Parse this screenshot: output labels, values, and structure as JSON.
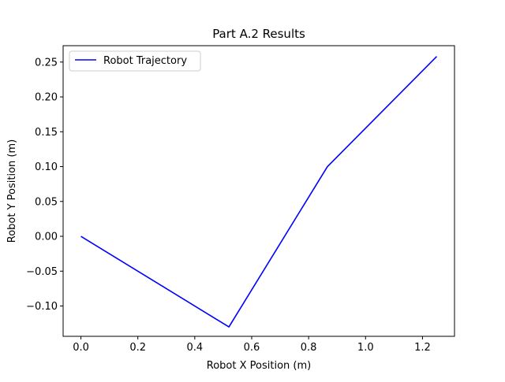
{
  "chart_data": {
    "type": "line",
    "title": "Part A.2 Results",
    "xlabel": "Robot X Position (m)",
    "ylabel": "Robot Y Position (m)",
    "xlim": [
      -0.0625,
      1.3125
    ],
    "ylim": [
      -0.1435,
      0.2735
    ],
    "xticks": [
      0.0,
      0.2,
      0.4,
      0.6,
      0.8,
      1.0,
      1.2
    ],
    "xtick_labels": [
      "0.0",
      "0.2",
      "0.4",
      "0.6",
      "0.8",
      "1.0",
      "1.2"
    ],
    "yticks": [
      -0.1,
      -0.05,
      0.0,
      0.05,
      0.1,
      0.15,
      0.2,
      0.25
    ],
    "ytick_labels": [
      "−0.10",
      "−0.05",
      "0.00",
      "0.05",
      "0.10",
      "0.15",
      "0.20",
      "0.25"
    ],
    "grid": false,
    "legend_position": "upper-left",
    "series": [
      {
        "name": "Robot Trajectory",
        "color": "#0000ff",
        "x": [
          0.0,
          0.52,
          0.866,
          1.25
        ],
        "y": [
          0.0,
          -0.13,
          0.1,
          0.258
        ]
      }
    ]
  }
}
